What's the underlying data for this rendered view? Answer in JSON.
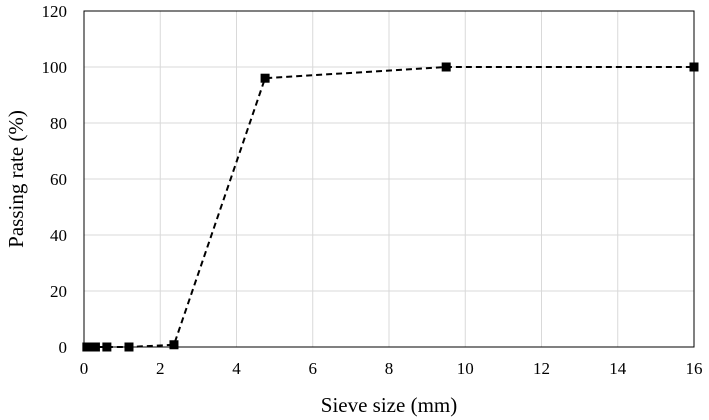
{
  "chart_data": {
    "type": "line",
    "title": "",
    "xlabel": "Sieve size (mm)",
    "ylabel": "Passing rate (%)",
    "xlim": [
      0,
      16
    ],
    "ylim": [
      0,
      120
    ],
    "xticks": [
      0,
      2,
      4,
      6,
      8,
      10,
      12,
      14,
      16
    ],
    "yticks": [
      0,
      20,
      40,
      60,
      80,
      100,
      120
    ],
    "grid": true,
    "legend": "none",
    "series": [
      {
        "marker": "square",
        "line_style": "dashed",
        "color": "#000000",
        "points": [
          {
            "x": 0.075,
            "y": 0
          },
          {
            "x": 0.15,
            "y": 0
          },
          {
            "x": 0.3,
            "y": 0
          },
          {
            "x": 0.6,
            "y": 0
          },
          {
            "x": 1.18,
            "y": 0
          },
          {
            "x": 2.36,
            "y": 0.8
          },
          {
            "x": 4.75,
            "y": 96
          },
          {
            "x": 9.5,
            "y": 100
          },
          {
            "x": 16,
            "y": 100
          }
        ]
      }
    ]
  }
}
